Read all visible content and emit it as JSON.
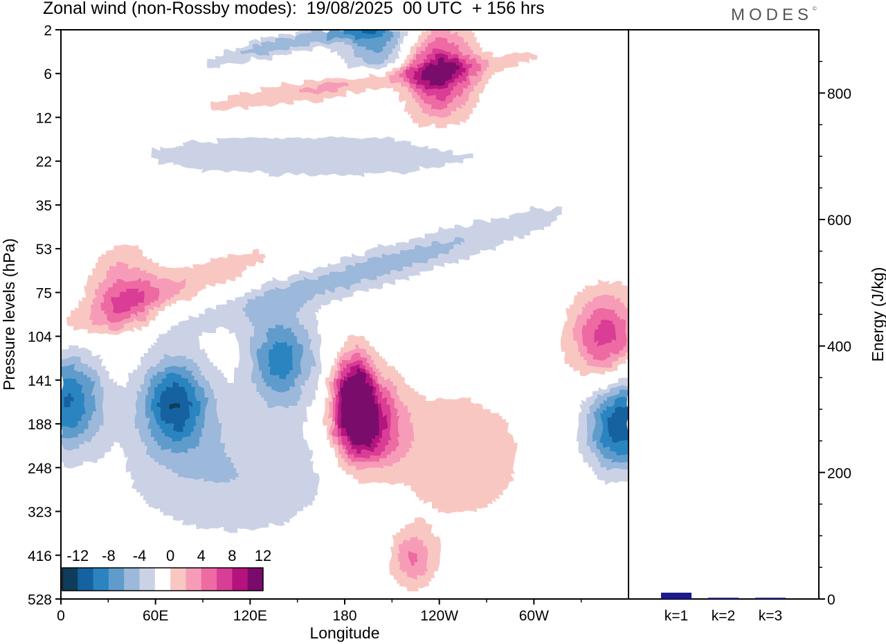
{
  "header": {
    "title": "Zonal wind (non-Rossby modes):  19/08/2025  00 UTC  + 156 hrs",
    "logo_text": "MODES",
    "logo_mark": "©"
  },
  "chart_data": [
    {
      "type": "heatmap",
      "title": "Zonal wind (non-Rossby modes):  19/08/2025  00 UTC  + 156 hrs",
      "xlabel": "Longitude",
      "ylabel": "Pressure levels (hPa)",
      "x_ticks": [
        "0",
        "60E",
        "120E",
        "180",
        "120W",
        "60W"
      ],
      "x_tick_values": [
        0,
        60,
        120,
        180,
        240,
        300
      ],
      "xlim": [
        0,
        360
      ],
      "y_ticks": [
        "2",
        "6",
        "12",
        "22",
        "35",
        "53",
        "75",
        "104",
        "141",
        "188",
        "248",
        "323",
        "416",
        "528"
      ],
      "colorbar": {
        "labels": [
          "-12",
          "-8",
          "-4",
          "0",
          "4",
          "8",
          "12"
        ],
        "levels": [
          -14,
          -12,
          -10,
          -8,
          -6,
          -4,
          -2,
          2,
          4,
          6,
          8,
          10,
          12,
          14
        ],
        "colors": [
          "#0e3c5a",
          "#1562a0",
          "#2b84c0",
          "#5f9ccc",
          "#9cb8da",
          "#ccd2e6",
          "#ffffff",
          "#f9c7c2",
          "#f79cb8",
          "#ee6aa2",
          "#d93e96",
          "#b5127e",
          "#7a0a6c"
        ]
      },
      "features": [
        {
          "value": 15,
          "lon": 186,
          "level": "141-188"
        },
        {
          "value": 10,
          "lon": 196,
          "level": "141-248"
        },
        {
          "value": -12,
          "lon": 355,
          "level": "188"
        },
        {
          "value": -11,
          "lon": 72,
          "level": "141-188"
        },
        {
          "value": -10,
          "lon": 5,
          "level": "141-188"
        },
        {
          "value": -9,
          "lon": 140,
          "level": "104-141"
        },
        {
          "value": 9,
          "lon": 345,
          "level": "104"
        },
        {
          "value": 6,
          "lon": 40,
          "level": "75"
        },
        {
          "value": 11,
          "lon": 240,
          "level": "6"
        },
        {
          "value": -8,
          "lon": 200,
          "level": "2"
        }
      ]
    },
    {
      "type": "bar",
      "categories": [
        "k=1",
        "k=2",
        "k=3"
      ],
      "values": [
        10,
        2,
        2
      ],
      "ylabel": "Energy (J/kg)",
      "y_ticks": [
        "0",
        "200",
        "400",
        "600",
        "800"
      ],
      "ylim": [
        0,
        900
      ],
      "color": "#1a1a8c"
    }
  ]
}
